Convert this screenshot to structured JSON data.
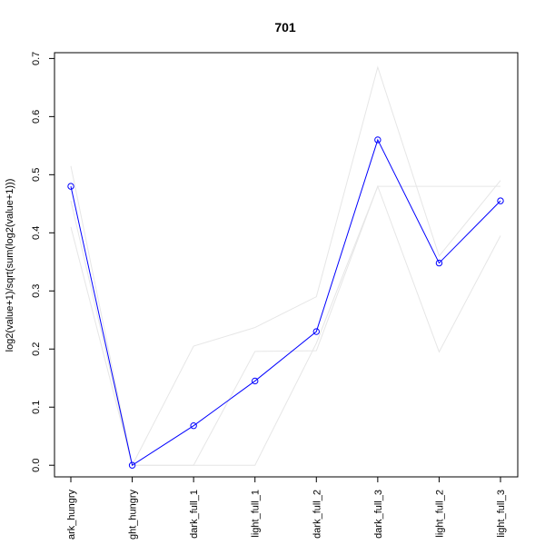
{
  "chart_data": {
    "type": "line",
    "title": "701",
    "xlabel": "",
    "ylabel": "log2(value+1)/sqrt(sum(log2(value+1)))",
    "categories": [
      "dark_hungry",
      "light_hungry",
      "dark_full_1",
      "light_full_1",
      "dark_full_2",
      "dark_full_3",
      "light_full_2",
      "light_full_3"
    ],
    "tick_labels_shown": [
      "ark_hungry",
      "ght_hungry",
      "dark_full_1",
      "light_full_1",
      "dark_full_2",
      "dark_full_3",
      "light_full_2",
      "light_full_3"
    ],
    "ylim": [
      -0.02,
      0.71
    ],
    "yticks": [
      0.0,
      0.1,
      0.2,
      0.3,
      0.4,
      0.5,
      0.6,
      0.7
    ],
    "ytick_labels": [
      "0.0",
      "0.1",
      "0.2",
      "0.3",
      "0.4",
      "0.5",
      "0.6",
      "0.7"
    ],
    "grid": false,
    "series": [
      {
        "role": "highlight",
        "color": "#0000ff",
        "marker": "open-circle",
        "values": [
          0.48,
          0.0,
          0.068,
          0.145,
          0.23,
          0.56,
          0.348,
          0.455
        ]
      },
      {
        "role": "background",
        "color": "#e6e6e6",
        "values": [
          0.515,
          0.0,
          0.205,
          0.237,
          0.29,
          0.685,
          0.36,
          0.49
        ]
      },
      {
        "role": "background",
        "color": "#e6e6e6",
        "values": [
          0.41,
          0.0,
          0.0,
          0.0,
          0.21,
          0.48,
          0.195,
          0.395
        ]
      },
      {
        "role": "background",
        "color": "#e6e6e6",
        "values": [
          0.455,
          0.0,
          0.0,
          0.196,
          0.197,
          0.48,
          0.48,
          0.48
        ]
      }
    ]
  }
}
